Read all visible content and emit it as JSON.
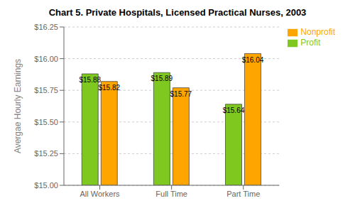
{
  "chart_data": {
    "type": "bar",
    "title": "Chart 5. Private Hospitals, Licensed Practical Nurses, 2003",
    "categories": [
      "All Workers",
      "Full Time",
      "Part Time"
    ],
    "series": [
      {
        "name": "Profit",
        "color": "#7EC820",
        "values": [
          15.88,
          15.89,
          15.64
        ],
        "value_labels": [
          "$15.88",
          "$15.89",
          "$15.64"
        ]
      },
      {
        "name": "Nonprofit",
        "color": "#FFA500",
        "values": [
          15.82,
          15.77,
          16.04
        ],
        "value_labels": [
          "$15.82",
          "$15.77",
          "$16.04"
        ]
      }
    ],
    "ylabel": "Avergae Hourly Earnings",
    "ylim": [
      15,
      16.25
    ],
    "yticks": [
      {
        "value": 15,
        "label": "$15.00"
      },
      {
        "value": 15.25,
        "label": "$15.25"
      },
      {
        "value": 15.5,
        "label": "$15.50"
      },
      {
        "value": 15.75,
        "label": "$15.75"
      },
      {
        "value": 16,
        "label": "$16.00"
      },
      {
        "value": 16.25,
        "label": "$16.25"
      }
    ],
    "grid": true,
    "legend": "right",
    "data_labels": true
  }
}
